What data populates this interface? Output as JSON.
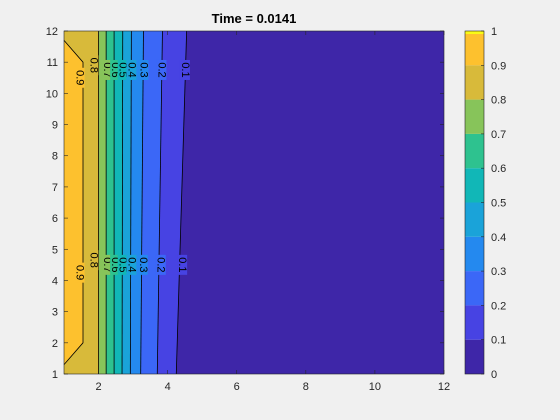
{
  "chart_data": {
    "type": "heatmap",
    "subtype": "filled-contour",
    "title": "Time = 0.0141",
    "xlabel": "",
    "ylabel": "",
    "xlim": [
      1,
      12
    ],
    "ylim": [
      1,
      12
    ],
    "xticks": [
      "2",
      "4",
      "6",
      "8",
      "10",
      "12"
    ],
    "yticks": [
      "1",
      "2",
      "3",
      "4",
      "5",
      "6",
      "7",
      "8",
      "9",
      "10",
      "11",
      "12"
    ],
    "colorbar": {
      "range": [
        0,
        1
      ],
      "ticks": [
        "0",
        "0.1",
        "0.2",
        "0.3",
        "0.4",
        "0.5",
        "0.6",
        "0.7",
        "0.8",
        "0.9",
        "1"
      ],
      "colormap": [
        "#3e26a8",
        "#4743e3",
        "#3b67f7",
        "#2489ef",
        "#1aa3d9",
        "#11b7b7",
        "#2ec28f",
        "#87c45a",
        "#d8ba3a",
        "#fdc12e",
        "#f9fb15"
      ]
    },
    "contour_levels": [
      0.1,
      0.2,
      0.3,
      0.4,
      0.5,
      0.6,
      0.7,
      0.8,
      0.9
    ],
    "level_x_positions": [
      {
        "level": 0.1,
        "x_at_y1": 4.25,
        "x_at_y12": 4.55
      },
      {
        "level": 0.2,
        "x_at_y1": 3.7,
        "x_at_y12": 3.85
      },
      {
        "level": 0.3,
        "x_at_y1": 3.22,
        "x_at_y12": 3.3
      },
      {
        "level": 0.4,
        "x_at_y1": 2.92,
        "x_at_y12": 2.95
      },
      {
        "level": 0.5,
        "x_at_y1": 2.68,
        "x_at_y12": 2.7
      },
      {
        "level": 0.6,
        "x_at_y1": 2.45,
        "x_at_y12": 2.45
      },
      {
        "level": 0.7,
        "x_at_y1": 2.22,
        "x_at_y12": 2.22
      },
      {
        "level": 0.8,
        "x_at_y1": 2.0,
        "x_at_y12": 2.0
      }
    ],
    "level_0_9_boundary": [
      [
        1,
        1.3
      ],
      [
        1.55,
        2.0
      ],
      [
        1.55,
        11.0
      ],
      [
        1,
        11.7
      ]
    ],
    "contour_labels": [
      {
        "text": "0.9",
        "x": 1.45,
        "y": 10.5
      },
      {
        "text": "0.8",
        "x": 1.85,
        "y": 10.9
      },
      {
        "text": "0.7",
        "x": 2.25,
        "y": 10.75
      },
      {
        "text": "0.6",
        "x": 2.48,
        "y": 10.75
      },
      {
        "text": "0.5",
        "x": 2.7,
        "y": 10.75
      },
      {
        "text": "0.4",
        "x": 2.95,
        "y": 10.75
      },
      {
        "text": "0.3",
        "x": 3.3,
        "y": 10.75
      },
      {
        "text": "0.2",
        "x": 3.82,
        "y": 10.75
      },
      {
        "text": "0.1",
        "x": 4.5,
        "y": 10.75
      },
      {
        "text": "0.9",
        "x": 1.45,
        "y": 4.25
      },
      {
        "text": "0.8",
        "x": 1.85,
        "y": 4.65
      },
      {
        "text": "0.7",
        "x": 2.25,
        "y": 4.5
      },
      {
        "text": "0.6",
        "x": 2.48,
        "y": 4.5
      },
      {
        "text": "0.5",
        "x": 2.7,
        "y": 4.5
      },
      {
        "text": "0.4",
        "x": 2.95,
        "y": 4.5
      },
      {
        "text": "0.3",
        "x": 3.28,
        "y": 4.5
      },
      {
        "text": "0.2",
        "x": 3.8,
        "y": 4.5
      },
      {
        "text": "0.1",
        "x": 4.42,
        "y": 4.5
      }
    ],
    "grid": false
  }
}
